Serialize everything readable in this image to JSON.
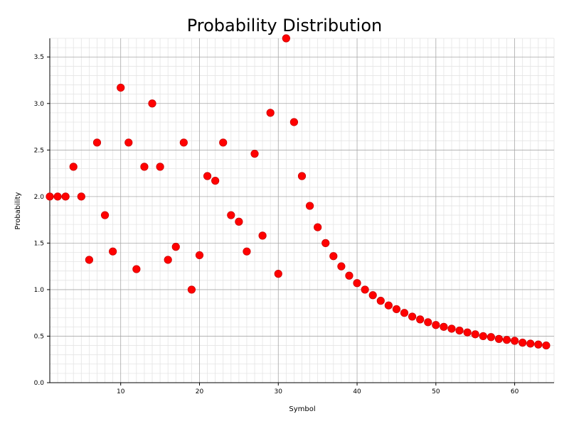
{
  "chart_data": {
    "type": "scatter",
    "title": "Probability Distribution",
    "xlabel": "Symbol",
    "ylabel": "Probability",
    "xlim": [
      1,
      65
    ],
    "ylim": [
      0,
      3.7
    ],
    "x_ticks": [
      10,
      20,
      30,
      40,
      50,
      60
    ],
    "y_ticks": [
      0.0,
      0.5,
      1.0,
      1.5,
      2.0,
      2.5,
      3.0,
      3.5
    ],
    "y_tick_labels": [
      "0.0",
      "0.5",
      "1.0",
      "1.5",
      "2.0",
      "2.5",
      "3.0",
      "3.5"
    ],
    "x_tick_labels": [
      "10",
      "20",
      "30",
      "40",
      "50",
      "60"
    ],
    "grid": true,
    "marker_color": "#ff0000",
    "marker_edge": "#cc0000",
    "series": [
      {
        "x": [
          1,
          2,
          3,
          4,
          5,
          6,
          7,
          8,
          9,
          10,
          11,
          12,
          13,
          14,
          15,
          16,
          17,
          18,
          19,
          20,
          21,
          22,
          23,
          24,
          25,
          26,
          27,
          28,
          29,
          30,
          31,
          32,
          33,
          34,
          35,
          36,
          37,
          38,
          39,
          40,
          41,
          42,
          43,
          44,
          45,
          46,
          47,
          48,
          49,
          50,
          51,
          52,
          53,
          54,
          55,
          56,
          57,
          58,
          59,
          60,
          61,
          62,
          63,
          64
        ],
        "y": [
          2.0,
          2.0,
          2.0,
          2.32,
          2.0,
          1.32,
          2.58,
          1.8,
          1.41,
          3.17,
          2.58,
          1.22,
          2.32,
          3.0,
          2.32,
          1.32,
          1.46,
          2.58,
          1.0,
          1.37,
          2.22,
          2.17,
          2.58,
          1.8,
          1.73,
          1.41,
          2.46,
          1.58,
          2.9,
          1.17,
          3.7,
          2.8,
          2.22,
          1.9,
          1.67,
          1.5,
          1.36,
          1.25,
          1.15,
          1.07,
          1.0,
          0.94,
          0.88,
          0.83,
          0.79,
          0.75,
          0.71,
          0.68,
          0.65,
          0.62,
          0.6,
          0.58,
          0.56,
          0.54,
          0.52,
          0.5,
          0.49,
          0.47,
          0.46,
          0.45,
          0.43,
          0.42,
          0.41,
          0.4
        ]
      }
    ]
  }
}
